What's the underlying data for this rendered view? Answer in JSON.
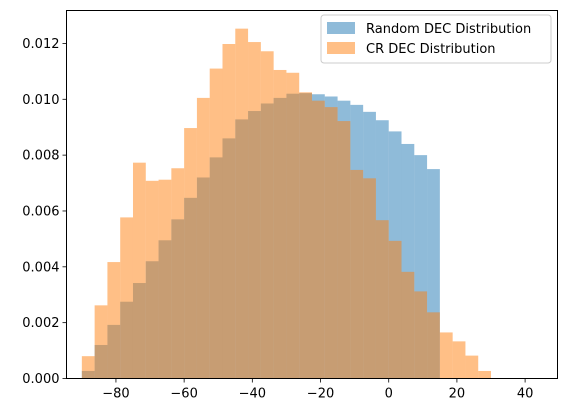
{
  "chart_data": {
    "type": "bar",
    "subtype": "overlapping-histogram",
    "x_ticks": [
      -80,
      -60,
      -40,
      -20,
      0,
      20,
      40
    ],
    "y_ticks": [
      0.0,
      0.002,
      0.004,
      0.006,
      0.008,
      0.01,
      0.012
    ],
    "y_tick_labels": [
      "0.000",
      "0.002",
      "0.004",
      "0.006",
      "0.008",
      "0.010",
      "0.012"
    ],
    "xlim": [
      -94.5,
      49.5
    ],
    "ylim": [
      0,
      0.01318
    ],
    "bin_start": -90,
    "bin_width": 3.75,
    "series": [
      {
        "name": "Random DEC Distribution",
        "color": "#1f77b4",
        "alpha": 0.5,
        "values": [
          0.00027,
          0.0012,
          0.00192,
          0.00275,
          0.00342,
          0.0042,
          0.00495,
          0.0057,
          0.00647,
          0.0072,
          0.00792,
          0.0086,
          0.00928,
          0.00958,
          0.00985,
          0.01005,
          0.0102,
          0.01022,
          0.01018,
          0.0101,
          0.00995,
          0.0098,
          0.00955,
          0.00925,
          0.00885,
          0.0084,
          0.008,
          0.0075
        ]
      },
      {
        "name": "CR DEC Distribution",
        "color": "#ff7f0e",
        "alpha": 0.5,
        "values": [
          0.0008,
          0.00262,
          0.00417,
          0.00577,
          0.00773,
          0.00708,
          0.00712,
          0.00753,
          0.00897,
          0.01005,
          0.0111,
          0.01198,
          0.01253,
          0.01205,
          0.01172,
          0.01105,
          0.01095,
          0.01025,
          0.00995,
          0.00972,
          0.00922,
          0.00747,
          0.00717,
          0.00567,
          0.00493,
          0.00382,
          0.00312,
          0.00237,
          0.00165,
          0.00133,
          0.00082,
          0.00027
        ]
      }
    ],
    "legend_position": "top-right",
    "grid": false
  }
}
